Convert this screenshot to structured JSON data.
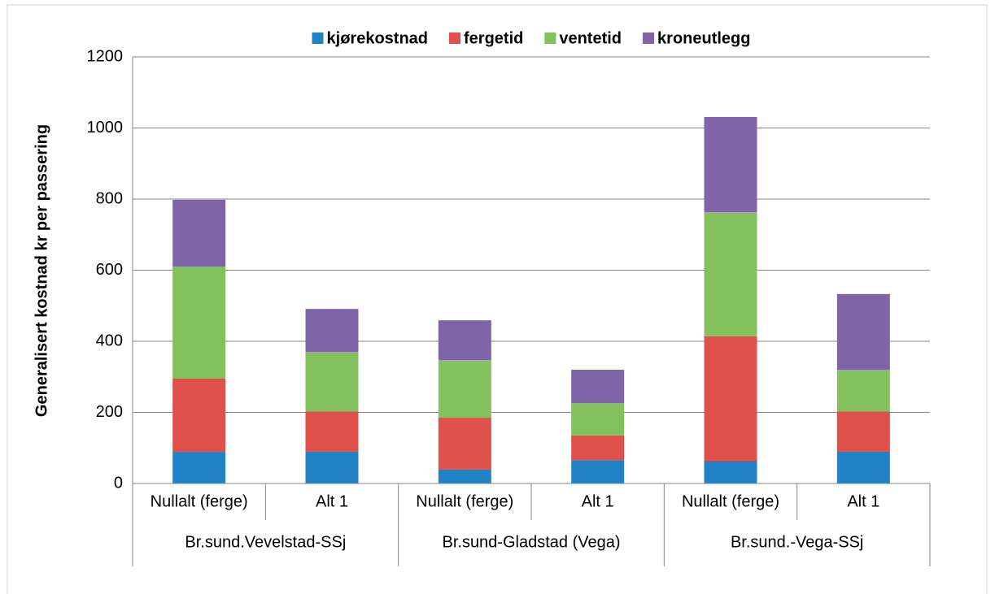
{
  "chart_data": {
    "type": "stacked_bar",
    "y_axis_label": "Generalisert kostnad kr per passering",
    "categories": [
      "Nullalt (ferge)",
      "Alt 1",
      "Nullalt (ferge)",
      "Alt 1",
      "Nullalt (ferge)",
      "Alt 1"
    ],
    "groups": [
      "Br.sund.Vevelstad-SSj",
      "Br.sund-Gladstad (Vega)",
      "Br.sund.-Vega-SSj"
    ],
    "series": [
      {
        "name": "kjørekostnad",
        "color": "#2183c6",
        "values": [
          89,
          91,
          39,
          66,
          64,
          91
        ]
      },
      {
        "name": "fergetid",
        "color": "#e0514b",
        "values": [
          206,
          112,
          146,
          69,
          350,
          112
        ]
      },
      {
        "name": "ventetid",
        "color": "#84c15c",
        "values": [
          315,
          167,
          162,
          91,
          349,
          117
        ]
      },
      {
        "name": "kroneutlegg",
        "color": "#8064a8",
        "values": [
          188,
          121,
          112,
          94,
          268,
          213
        ]
      }
    ],
    "ylim": [
      0,
      1200
    ],
    "yticks": [
      0,
      200,
      400,
      600,
      800,
      1000,
      1200
    ],
    "grid": true,
    "legend": "top"
  }
}
